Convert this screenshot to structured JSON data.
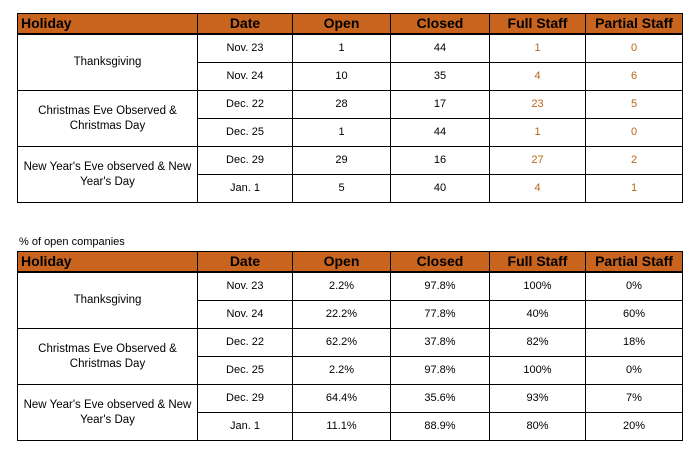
{
  "table1": {
    "headers": [
      "Holiday",
      "Date",
      "Open",
      "Closed",
      "Full Staff",
      "Partial Staff"
    ],
    "groups": [
      {
        "holiday": "Thanksgiving",
        "rows": [
          {
            "date": "Nov. 23",
            "open": "1",
            "closed": "44",
            "full": "1",
            "partial": "0"
          },
          {
            "date": "Nov. 24",
            "open": "10",
            "closed": "35",
            "full": "4",
            "partial": "6"
          }
        ]
      },
      {
        "holiday": "Christmas Eve Observed & Christmas Day",
        "rows": [
          {
            "date": "Dec. 22",
            "open": "28",
            "closed": "17",
            "full": "23",
            "partial": "5"
          },
          {
            "date": "Dec. 25",
            "open": "1",
            "closed": "44",
            "full": "1",
            "partial": "0"
          }
        ]
      },
      {
        "holiday": "New Year's Eve observed & New Year's Day",
        "rows": [
          {
            "date": "Dec. 29",
            "open": "29",
            "closed": "16",
            "full": "27",
            "partial": "2"
          },
          {
            "date": "Jan. 1",
            "open": "5",
            "closed": "40",
            "full": "4",
            "partial": "1"
          }
        ]
      }
    ]
  },
  "caption": "% of open companies",
  "table2": {
    "headers": [
      "Holiday",
      "Date",
      "Open",
      "Closed",
      "Full Staff",
      "Partial Staff"
    ],
    "groups": [
      {
        "holiday": "Thanksgiving",
        "rows": [
          {
            "date": "Nov. 23",
            "open": "2.2%",
            "closed": "97.8%",
            "full": "100%",
            "partial": "0%"
          },
          {
            "date": "Nov. 24",
            "open": "22.2%",
            "closed": "77.8%",
            "full": "40%",
            "partial": "60%"
          }
        ]
      },
      {
        "holiday": "Christmas Eve Observed & Christmas Day",
        "rows": [
          {
            "date": "Dec. 22",
            "open": "62.2%",
            "closed": "37.8%",
            "full": "82%",
            "partial": "18%"
          },
          {
            "date": "Dec. 25",
            "open": "2.2%",
            "closed": "97.8%",
            "full": "100%",
            "partial": "0%"
          }
        ]
      },
      {
        "holiday": "New Year's Eve observed & New Year's Day",
        "rows": [
          {
            "date": "Dec. 29",
            "open": "64.4%",
            "closed": "35.6%",
            "full": "93%",
            "partial": "7%"
          },
          {
            "date": "Jan. 1",
            "open": "11.1%",
            "closed": "88.9%",
            "full": "80%",
            "partial": "20%"
          }
        ]
      }
    ]
  },
  "colors": {
    "header_bg": "#c8641e",
    "highlight_text": "#b8651a"
  }
}
